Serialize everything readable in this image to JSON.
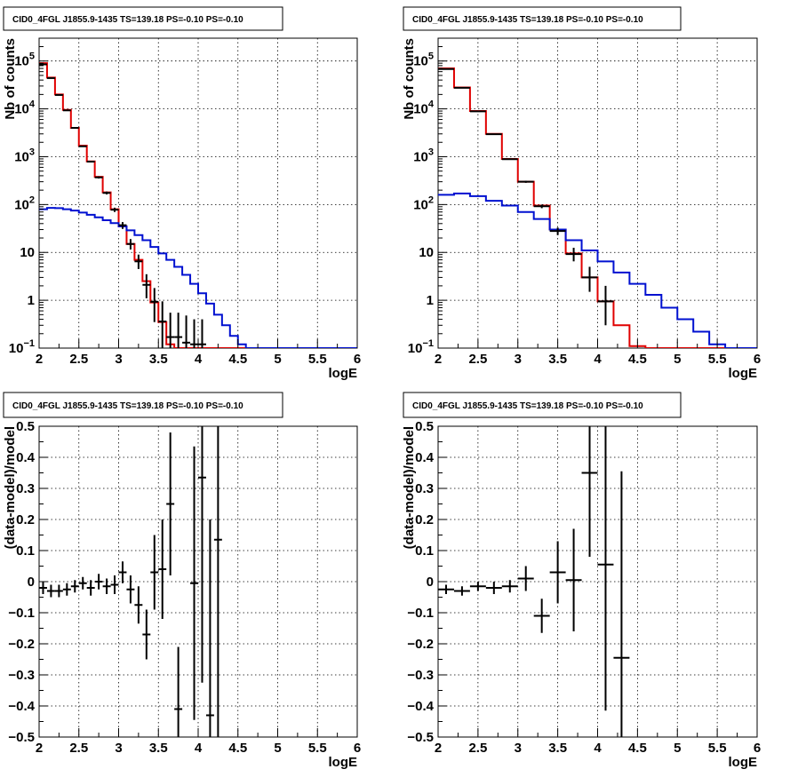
{
  "panels_title": "CID0_4FGL J1855.9-1435 TS=139.18 PS=-0.10 PS=-0.10",
  "colors": {
    "data": "#000000",
    "model_total": "#e00000",
    "model_background": "#0010d0",
    "grid": "#000000"
  },
  "chart_data": [
    {
      "type": "line",
      "title": "CID0_4FGL J1855.9-1435 TS=139.18 PS=-0.10 PS=-0.10",
      "xlabel": "logE",
      "ylabel": "Nb of counts",
      "xlim": [
        2,
        6
      ],
      "ylim": [
        0.1,
        300000
      ],
      "yscale": "log",
      "grid": true,
      "x_ticks": [
        "2",
        "2.5",
        "3",
        "3.5",
        "4",
        "4.5",
        "5",
        "5.5",
        "6"
      ],
      "y_ticks": [
        {
          "v": 0.1,
          "base": "10",
          "exp": "−1"
        },
        {
          "v": 1,
          "base": "1",
          "exp": ""
        },
        {
          "v": 10,
          "base": "10",
          "exp": ""
        },
        {
          "v": 100,
          "base": "10",
          "exp": "2"
        },
        {
          "v": 1000,
          "base": "10",
          "exp": "3"
        },
        {
          "v": 10000,
          "base": "10",
          "exp": "4"
        },
        {
          "v": 100000,
          "base": "10",
          "exp": "5"
        }
      ],
      "bin_edges": [
        2.0,
        2.1,
        2.2,
        2.3,
        2.4,
        2.5,
        2.6,
        2.7,
        2.8,
        2.9,
        3.0,
        3.1,
        3.2,
        3.3,
        3.4,
        3.5,
        3.6,
        3.7,
        3.8,
        3.9,
        4.0,
        4.1,
        4.2,
        4.3,
        4.4,
        4.5,
        4.6,
        4.7,
        4.8,
        4.9,
        5.0,
        5.1,
        5.2,
        5.3,
        5.4,
        5.5,
        5.6,
        5.7,
        5.8,
        5.9,
        6.0
      ],
      "series": [
        {
          "kind": "step",
          "color": "#e00000",
          "values": [
            90000,
            45000,
            20000,
            9500,
            4000,
            1700,
            800,
            380,
            180,
            80,
            35,
            15,
            7,
            2.5,
            0.9,
            0.35,
            0.12,
            0.1,
            0.1,
            0.1,
            0.1,
            0.1,
            0.1,
            0.1,
            0.1,
            0.1,
            0.1,
            0.1,
            0.1,
            0.1,
            0.1,
            0.1,
            0.1,
            0.1,
            0.1,
            0.1,
            0.1,
            0.1,
            0.1,
            0.1
          ]
        },
        {
          "kind": "step",
          "color": "#0010d0",
          "values": [
            80,
            85,
            84,
            80,
            75,
            68,
            61,
            54,
            47,
            41,
            35,
            29,
            23,
            18,
            13,
            9.5,
            7,
            5,
            3.4,
            2.2,
            1.4,
            0.85,
            0.5,
            0.3,
            0.18,
            0.12,
            0.1,
            0.1,
            0.1,
            0.1,
            0.1,
            0.1,
            0.1,
            0.1,
            0.1,
            0.1,
            0.1,
            0.1,
            0.1,
            0.1
          ]
        },
        {
          "kind": "errorbars",
          "color": "#000000",
          "points": [
            {
              "x": 2.05,
              "y": 85000,
              "lo": 84000,
              "hi": 86000
            },
            {
              "x": 2.15,
              "y": 44000,
              "lo": 43500,
              "hi": 44500
            },
            {
              "x": 2.25,
              "y": 19500,
              "lo": 19100,
              "hi": 19900
            },
            {
              "x": 2.35,
              "y": 9300,
              "lo": 9100,
              "hi": 9500
            },
            {
              "x": 2.45,
              "y": 4000,
              "lo": 3900,
              "hi": 4100
            },
            {
              "x": 2.55,
              "y": 1650,
              "lo": 1600,
              "hi": 1700
            },
            {
              "x": 2.65,
              "y": 790,
              "lo": 760,
              "hi": 820
            },
            {
              "x": 2.75,
              "y": 370,
              "lo": 350,
              "hi": 390
            },
            {
              "x": 2.85,
              "y": 175,
              "lo": 163,
              "hi": 187
            },
            {
              "x": 2.95,
              "y": 78,
              "lo": 70,
              "hi": 86
            },
            {
              "x": 3.05,
              "y": 37,
              "lo": 31,
              "hi": 43
            },
            {
              "x": 3.15,
              "y": 15,
              "lo": 11.5,
              "hi": 19
            },
            {
              "x": 3.25,
              "y": 6.5,
              "lo": 4.5,
              "hi": 9
            },
            {
              "x": 3.35,
              "y": 2.1,
              "lo": 1.1,
              "hi": 3.5
            },
            {
              "x": 3.45,
              "y": 0.93,
              "lo": 0.35,
              "hi": 1.8
            },
            {
              "x": 3.55,
              "y": 0.36,
              "lo": 0.1,
              "hi": 0.95
            },
            {
              "x": 3.65,
              "y": 0.17,
              "lo": 0.1,
              "hi": 0.55
            },
            {
              "x": 3.75,
              "y": 0.17,
              "lo": 0.1,
              "hi": 0.55
            },
            {
              "x": 3.85,
              "y": 0.13,
              "lo": 0.1,
              "hi": 0.48
            },
            {
              "x": 3.95,
              "y": 0.12,
              "lo": 0.1,
              "hi": 0.4
            },
            {
              "x": 4.05,
              "y": 0.12,
              "lo": 0.1,
              "hi": 0.4
            }
          ]
        }
      ]
    },
    {
      "type": "line",
      "title": "CID0_4FGL J1855.9-1435 TS=139.18 PS=-0.10 PS=-0.10",
      "xlabel": "logE",
      "ylabel": "Nb of counts",
      "xlim": [
        2,
        6
      ],
      "ylim": [
        0.1,
        300000
      ],
      "yscale": "log",
      "grid": true,
      "x_ticks": [
        "2",
        "2.5",
        "3",
        "3.5",
        "4",
        "4.5",
        "5",
        "5.5",
        "6"
      ],
      "y_ticks": [
        {
          "v": 0.1,
          "base": "10",
          "exp": "−1"
        },
        {
          "v": 1,
          "base": "1",
          "exp": ""
        },
        {
          "v": 10,
          "base": "10",
          "exp": ""
        },
        {
          "v": 100,
          "base": "10",
          "exp": "2"
        },
        {
          "v": 1000,
          "base": "10",
          "exp": "3"
        },
        {
          "v": 10000,
          "base": "10",
          "exp": "4"
        },
        {
          "v": 100000,
          "base": "10",
          "exp": "5"
        }
      ],
      "bin_edges": [
        2.0,
        2.2,
        2.4,
        2.6,
        2.8,
        3.0,
        3.2,
        3.4,
        3.6,
        3.8,
        4.0,
        4.2,
        4.4,
        4.6,
        4.8,
        5.0,
        5.2,
        5.4,
        5.6,
        5.8,
        6.0
      ],
      "series": [
        {
          "kind": "step",
          "color": "#e00000",
          "values": [
            70000,
            28000,
            9000,
            3000,
            900,
            300,
            95,
            30,
            9.5,
            3,
            0.95,
            0.3,
            0.11,
            0.1,
            0.1,
            0.1,
            0.1,
            0.1,
            0.1,
            0.1
          ]
        },
        {
          "kind": "step",
          "color": "#0010d0",
          "values": [
            160,
            170,
            150,
            120,
            95,
            70,
            50,
            30,
            18,
            11,
            6.5,
            3.8,
            2.2,
            1.3,
            0.7,
            0.4,
            0.22,
            0.12,
            0.1,
            0.1
          ]
        },
        {
          "kind": "errorbars",
          "color": "#000000",
          "points": [
            {
              "x": 2.1,
              "y": 68000,
              "lo": 67500,
              "hi": 68500
            },
            {
              "x": 2.3,
              "y": 27500,
              "lo": 27200,
              "hi": 27800
            },
            {
              "x": 2.5,
              "y": 8900,
              "lo": 8750,
              "hi": 9050
            },
            {
              "x": 2.7,
              "y": 2950,
              "lo": 2880,
              "hi": 3020
            },
            {
              "x": 2.9,
              "y": 890,
              "lo": 860,
              "hi": 920
            },
            {
              "x": 3.1,
              "y": 300,
              "lo": 285,
              "hi": 315
            },
            {
              "x": 3.3,
              "y": 92,
              "lo": 84,
              "hi": 100
            },
            {
              "x": 3.5,
              "y": 28,
              "lo": 23,
              "hi": 33
            },
            {
              "x": 3.7,
              "y": 9.2,
              "lo": 6.5,
              "hi": 12.5
            },
            {
              "x": 3.9,
              "y": 3.0,
              "lo": 1.5,
              "hi": 5
            },
            {
              "x": 4.1,
              "y": 0.95,
              "lo": 0.3,
              "hi": 2
            }
          ]
        }
      ]
    },
    {
      "type": "scatter",
      "title": "CID0_4FGL J1855.9-1435 TS=139.18 PS=-0.10 PS=-0.10",
      "xlabel": "logE",
      "ylabel": "(data-model)/model",
      "xlim": [
        2,
        6
      ],
      "ylim": [
        -0.5,
        0.5
      ],
      "grid": true,
      "x_ticks": [
        "2",
        "2.5",
        "3",
        "3.5",
        "4",
        "4.5",
        "5",
        "5.5",
        "6"
      ],
      "y_ticks": [
        {
          "v": -0.5,
          "label": "−0.5"
        },
        {
          "v": -0.4,
          "label": "−0.4"
        },
        {
          "v": -0.3,
          "label": "−0.3"
        },
        {
          "v": -0.2,
          "label": "−0.2"
        },
        {
          "v": -0.1,
          "label": "−0.1"
        },
        {
          "v": 0,
          "label": "0"
        },
        {
          "v": 0.1,
          "label": "0.1"
        },
        {
          "v": 0.2,
          "label": "0.2"
        },
        {
          "v": 0.3,
          "label": "0.3"
        },
        {
          "v": 0.4,
          "label": "0.4"
        },
        {
          "v": 0.5,
          "label": "0.5"
        }
      ],
      "half_width": 0.05,
      "points": [
        {
          "x": 2.05,
          "y": -0.02,
          "err": 0.02
        },
        {
          "x": 2.15,
          "y": -0.03,
          "err": 0.02
        },
        {
          "x": 2.25,
          "y": -0.03,
          "err": 0.02
        },
        {
          "x": 2.35,
          "y": -0.025,
          "err": 0.02
        },
        {
          "x": 2.45,
          "y": -0.015,
          "err": 0.02
        },
        {
          "x": 2.55,
          "y": -0.005,
          "err": 0.02
        },
        {
          "x": 2.65,
          "y": -0.02,
          "err": 0.025
        },
        {
          "x": 2.75,
          "y": 0.0,
          "err": 0.025
        },
        {
          "x": 2.85,
          "y": -0.015,
          "err": 0.025
        },
        {
          "x": 2.95,
          "y": -0.01,
          "err": 0.03
        },
        {
          "x": 3.05,
          "y": 0.03,
          "err": 0.035
        },
        {
          "x": 3.15,
          "y": -0.025,
          "err": 0.045
        },
        {
          "x": 3.25,
          "y": -0.075,
          "err": 0.06
        },
        {
          "x": 3.35,
          "y": -0.17,
          "err": 0.08
        },
        {
          "x": 3.45,
          "y": 0.03,
          "err": 0.12
        },
        {
          "x": 3.55,
          "y": 0.04,
          "err": 0.16
        },
        {
          "x": 3.65,
          "y": 0.25,
          "err": 0.23
        },
        {
          "x": 3.75,
          "y": -0.41,
          "err": 0.2
        },
        {
          "x": 3.95,
          "y": -0.005,
          "err": 0.44
        },
        {
          "x": 4.05,
          "y": 0.335,
          "err": 0.66
        },
        {
          "x": 4.15,
          "y": -0.43,
          "err": 0.63
        },
        {
          "x": 4.25,
          "y": 0.135,
          "err": 0.7
        }
      ]
    },
    {
      "type": "scatter",
      "title": "CID0_4FGL J1855.9-1435 TS=139.18 PS=-0.10 PS=-0.10",
      "xlabel": "logE",
      "ylabel": "(data-model)/model",
      "xlim": [
        2,
        6
      ],
      "ylim": [
        -0.5,
        0.5
      ],
      "grid": true,
      "x_ticks": [
        "2",
        "2.5",
        "3",
        "3.5",
        "4",
        "4.5",
        "5",
        "5.5",
        "6"
      ],
      "y_ticks": [
        {
          "v": -0.5,
          "label": "−0.5"
        },
        {
          "v": -0.4,
          "label": "−0.4"
        },
        {
          "v": -0.3,
          "label": "−0.3"
        },
        {
          "v": -0.2,
          "label": "−0.2"
        },
        {
          "v": -0.1,
          "label": "−0.1"
        },
        {
          "v": 0,
          "label": "0"
        },
        {
          "v": 0.1,
          "label": "0.1"
        },
        {
          "v": 0.2,
          "label": "0.2"
        },
        {
          "v": 0.3,
          "label": "0.3"
        },
        {
          "v": 0.4,
          "label": "0.4"
        },
        {
          "v": 0.5,
          "label": "0.5"
        }
      ],
      "half_width": 0.1,
      "points": [
        {
          "x": 2.1,
          "y": -0.025,
          "err": 0.015
        },
        {
          "x": 2.3,
          "y": -0.03,
          "err": 0.015
        },
        {
          "x": 2.5,
          "y": -0.015,
          "err": 0.015
        },
        {
          "x": 2.7,
          "y": -0.02,
          "err": 0.02
        },
        {
          "x": 2.9,
          "y": -0.015,
          "err": 0.02
        },
        {
          "x": 3.1,
          "y": 0.01,
          "err": 0.04
        },
        {
          "x": 3.3,
          "y": -0.11,
          "err": 0.055
        },
        {
          "x": 3.5,
          "y": 0.03,
          "err": 0.1
        },
        {
          "x": 3.7,
          "y": 0.005,
          "err": 0.165
        },
        {
          "x": 3.9,
          "y": 0.35,
          "err": 0.27
        },
        {
          "x": 4.1,
          "y": 0.055,
          "err": 0.47
        },
        {
          "x": 4.3,
          "y": -0.245,
          "err": 0.6
        }
      ]
    }
  ]
}
